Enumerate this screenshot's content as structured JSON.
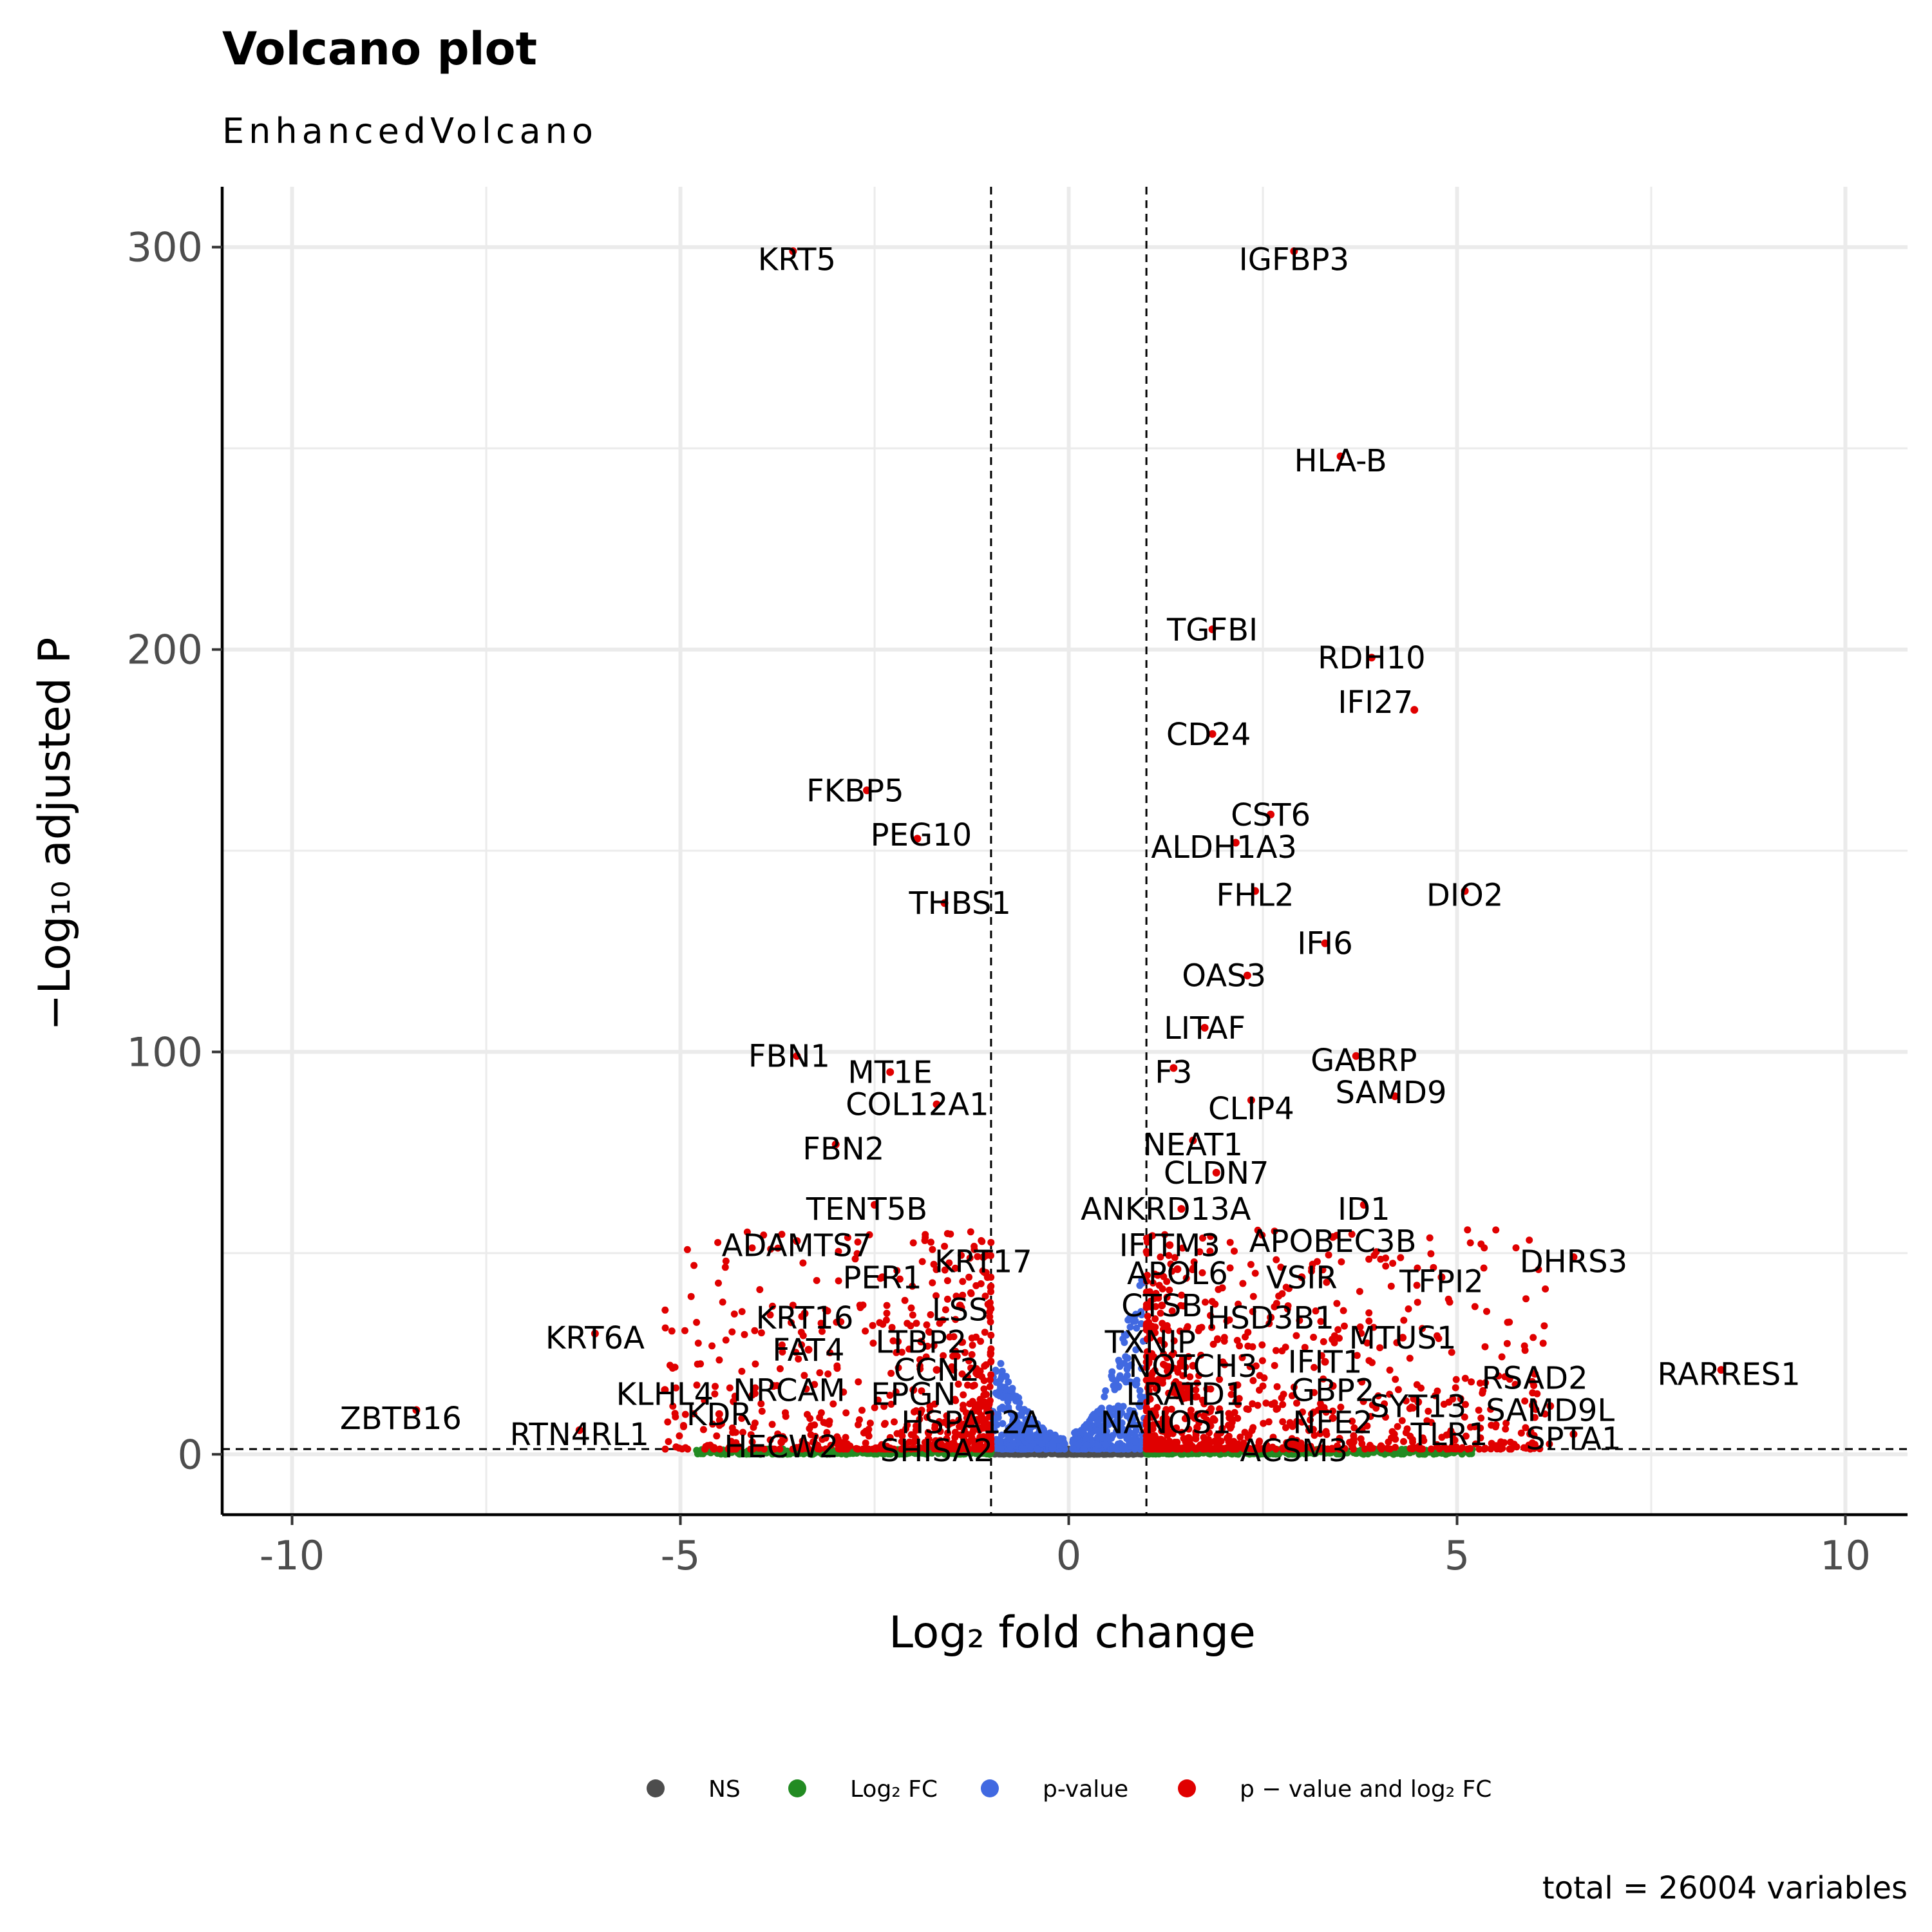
{
  "chart_data": {
    "type": "scatter",
    "title": "Volcano plot",
    "subtitle": "EnhancedVolcano",
    "xlabel": "Log₂ fold change",
    "ylabel": "−Log₁₀ adjusted P",
    "caption": "total = 26004 variables",
    "xlim": [
      -10.9,
      10.8
    ],
    "ylim": [
      -15,
      315
    ],
    "x_ticks": [
      -10,
      -5,
      0,
      5,
      10
    ],
    "x_tick_labels": [
      "-10",
      "-5",
      "0",
      "5",
      "10"
    ],
    "y_ticks": [
      0,
      100,
      200,
      300
    ],
    "y_tick_labels": [
      "0",
      "100",
      "200",
      "300"
    ],
    "cutoffs": {
      "log2fc": [
        -1,
        1
      ],
      "pvalue_line": 1.3
    },
    "grid": true,
    "legend_position": "bottom",
    "colors": {
      "NS": "#4d4d4d",
      "FC": "#228b22",
      "P": "#4169e1",
      "FC_P": "#e00000"
    },
    "legend": [
      {
        "key": "NS",
        "label": "NS"
      },
      {
        "key": "FC",
        "label": "Log₂ FC"
      },
      {
        "key": "P",
        "label": "p-value"
      },
      {
        "key": "FC_P",
        "label": "p − value and log₂ FC"
      }
    ],
    "labeled_genes": [
      {
        "gene": "KRT5",
        "x": -3.55,
        "y": 299,
        "lx": -3.5,
        "ly": 297
      },
      {
        "gene": "IGFBP3",
        "x": 2.9,
        "y": 299,
        "lx": 2.9,
        "ly": 297
      },
      {
        "gene": "HLA-B",
        "x": 3.5,
        "y": 248,
        "lx": 3.5,
        "ly": 247
      },
      {
        "gene": "TGFBI",
        "x": 1.85,
        "y": 205,
        "lx": 1.85,
        "ly": 205
      },
      {
        "gene": "RDH10",
        "x": 3.9,
        "y": 198,
        "lx": 3.9,
        "ly": 198
      },
      {
        "gene": "IFI27",
        "x": 4.45,
        "y": 185,
        "lx": 3.95,
        "ly": 187
      },
      {
        "gene": "CD24",
        "x": 1.85,
        "y": 179,
        "lx": 1.8,
        "ly": 179
      },
      {
        "gene": "FKBP5",
        "x": -2.6,
        "y": 165,
        "lx": -2.75,
        "ly": 165
      },
      {
        "gene": "CST6",
        "x": 2.6,
        "y": 159,
        "lx": 2.6,
        "ly": 159
      },
      {
        "gene": "PEG10",
        "x": -1.95,
        "y": 153,
        "lx": -1.9,
        "ly": 154
      },
      {
        "gene": "ALDH1A3",
        "x": 2.15,
        "y": 152,
        "lx": 2.0,
        "ly": 151
      },
      {
        "gene": "FHL2",
        "x": 2.4,
        "y": 140,
        "lx": 2.4,
        "ly": 139
      },
      {
        "gene": "DIO2",
        "x": 5.1,
        "y": 140,
        "lx": 5.1,
        "ly": 139
      },
      {
        "gene": "THBS1",
        "x": -1.6,
        "y": 137,
        "lx": -1.4,
        "ly": 137
      },
      {
        "gene": "IFI6",
        "x": 3.3,
        "y": 127,
        "lx": 3.3,
        "ly": 127
      },
      {
        "gene": "OAS3",
        "x": 2.3,
        "y": 119,
        "lx": 2.0,
        "ly": 119
      },
      {
        "gene": "LITAF",
        "x": 1.75,
        "y": 106,
        "lx": 1.75,
        "ly": 106
      },
      {
        "gene": "FBN1",
        "x": -3.5,
        "y": 99,
        "lx": -3.6,
        "ly": 99
      },
      {
        "gene": "GABRP",
        "x": 3.7,
        "y": 99,
        "lx": 3.8,
        "ly": 98
      },
      {
        "gene": "MT1E",
        "x": -2.3,
        "y": 95,
        "lx": -2.3,
        "ly": 95
      },
      {
        "gene": "F3",
        "x": 1.35,
        "y": 96,
        "lx": 1.35,
        "ly": 95
      },
      {
        "gene": "SAMD9",
        "x": 4.2,
        "y": 89,
        "lx": 4.15,
        "ly": 90
      },
      {
        "gene": "COL12A1",
        "x": -1.7,
        "y": 87,
        "lx": -1.95,
        "ly": 87
      },
      {
        "gene": "CLIP4",
        "x": 2.35,
        "y": 88,
        "lx": 2.35,
        "ly": 86
      },
      {
        "gene": "FBN2",
        "x": -3.0,
        "y": 77,
        "lx": -2.9,
        "ly": 76
      },
      {
        "gene": "NEAT1",
        "x": 1.6,
        "y": 78,
        "lx": 1.6,
        "ly": 77
      },
      {
        "gene": "CLDN7",
        "x": 1.9,
        "y": 70,
        "lx": 1.9,
        "ly": 70
      },
      {
        "gene": "ANKRD13A",
        "x": 1.45,
        "y": 61,
        "lx": 1.25,
        "ly": 61
      },
      {
        "gene": "ID1",
        "x": 3.8,
        "y": 62,
        "lx": 3.8,
        "ly": 61
      },
      {
        "gene": "TENT5B",
        "x": -2.5,
        "y": 62,
        "lx": -2.6,
        "ly": 61
      },
      {
        "gene": "APOBEC3B",
        "x": 3.4,
        "y": 54,
        "lx": 3.4,
        "ly": 53
      },
      {
        "gene": "ADAMTS7",
        "x": -3.5,
        "y": 53,
        "lx": -3.5,
        "ly": 52
      },
      {
        "gene": "IFITM3",
        "x": 1.3,
        "y": 52,
        "lx": 1.3,
        "ly": 52
      },
      {
        "gene": "DHRS3",
        "x": 6.5,
        "y": 49,
        "lx": 6.5,
        "ly": 48
      },
      {
        "gene": "KRT17",
        "x": -1.1,
        "y": 49,
        "lx": -1.1,
        "ly": 48
      },
      {
        "gene": "APOL6",
        "x": 1.4,
        "y": 46,
        "lx": 1.4,
        "ly": 45
      },
      {
        "gene": "VSIR",
        "x": 3.0,
        "y": 44,
        "lx": 3.0,
        "ly": 44
      },
      {
        "gene": "TFPI2",
        "x": 4.8,
        "y": 44,
        "lx": 4.8,
        "ly": 43
      },
      {
        "gene": "PER1",
        "x": -2.4,
        "y": 44,
        "lx": -2.4,
        "ly": 44
      },
      {
        "gene": "CTSB",
        "x": 1.2,
        "y": 37,
        "lx": 1.2,
        "ly": 37
      },
      {
        "gene": "LSS",
        "x": -1.4,
        "y": 37,
        "lx": -1.4,
        "ly": 36
      },
      {
        "gene": "KRT16",
        "x": -3.4,
        "y": 35,
        "lx": -3.4,
        "ly": 34
      },
      {
        "gene": "HSD3B1",
        "x": 2.6,
        "y": 34,
        "lx": 2.6,
        "ly": 34
      },
      {
        "gene": "MTUS1",
        "x": 4.3,
        "y": 29,
        "lx": 4.3,
        "ly": 29
      },
      {
        "gene": "KRT6A",
        "x": -6.1,
        "y": 30,
        "lx": -6.1,
        "ly": 29
      },
      {
        "gene": "LTBP2",
        "x": -1.9,
        "y": 28,
        "lx": -1.9,
        "ly": 28
      },
      {
        "gene": "TXNIP",
        "x": 1.05,
        "y": 29,
        "lx": 1.05,
        "ly": 28
      },
      {
        "gene": "FAT4",
        "x": -3.35,
        "y": 26,
        "lx": -3.35,
        "ly": 26
      },
      {
        "gene": "IFIT1",
        "x": 3.3,
        "y": 23,
        "lx": 3.3,
        "ly": 23
      },
      {
        "gene": "NOTCH3",
        "x": 1.6,
        "y": 22,
        "lx": 1.6,
        "ly": 22
      },
      {
        "gene": "CCN2",
        "x": -1.7,
        "y": 21,
        "lx": -1.7,
        "ly": 21
      },
      {
        "gene": "RSAD2",
        "x": 6.0,
        "y": 20,
        "lx": 6.0,
        "ly": 19
      },
      {
        "gene": "RARRES1",
        "x": 8.4,
        "y": 21,
        "lx": 8.5,
        "ly": 20
      },
      {
        "gene": "NRCAM",
        "x": -3.8,
        "y": 17,
        "lx": -3.6,
        "ly": 16
      },
      {
        "gene": "GBP2",
        "x": 3.4,
        "y": 17,
        "lx": 3.4,
        "ly": 16
      },
      {
        "gene": "EPGN",
        "x": -2.0,
        "y": 16,
        "lx": -2.0,
        "ly": 15
      },
      {
        "gene": "LRATD1",
        "x": 1.5,
        "y": 15,
        "lx": 1.5,
        "ly": 15
      },
      {
        "gene": "KLHL4",
        "x": -5.2,
        "y": 16,
        "lx": -5.2,
        "ly": 15
      },
      {
        "gene": "SYT13",
        "x": 4.5,
        "y": 13,
        "lx": 4.5,
        "ly": 12
      },
      {
        "gene": "SAMD9L",
        "x": 6.2,
        "y": 12,
        "lx": 6.2,
        "ly": 11
      },
      {
        "gene": "ZBTB16",
        "x": -8.4,
        "y": 11,
        "lx": -8.6,
        "ly": 9
      },
      {
        "gene": "KDR",
        "x": -4.5,
        "y": 10,
        "lx": -4.5,
        "ly": 10
      },
      {
        "gene": "NANOS1",
        "x": 1.25,
        "y": 8,
        "lx": 1.25,
        "ly": 8
      },
      {
        "gene": "HSPA12A",
        "x": -1.25,
        "y": 8,
        "lx": -1.25,
        "ly": 8
      },
      {
        "gene": "NFE2",
        "x": 3.4,
        "y": 9,
        "lx": 3.4,
        "ly": 8
      },
      {
        "gene": "RTN4RL1",
        "x": -6.3,
        "y": 6,
        "lx": -6.3,
        "ly": 5
      },
      {
        "gene": "TLR1",
        "x": 4.9,
        "y": 5,
        "lx": 4.9,
        "ly": 5
      },
      {
        "gene": "SPTA1",
        "x": 6.5,
        "y": 5,
        "lx": 6.5,
        "ly": 4
      },
      {
        "gene": "HECW2",
        "x": -3.7,
        "y": 3,
        "lx": -3.7,
        "ly": 2
      },
      {
        "gene": "SHISA2",
        "x": -1.7,
        "y": 2,
        "lx": -1.7,
        "ly": 1
      },
      {
        "gene": "ACSM3",
        "x": 2.9,
        "y": 2,
        "lx": 2.9,
        "ly": 1
      }
    ]
  }
}
